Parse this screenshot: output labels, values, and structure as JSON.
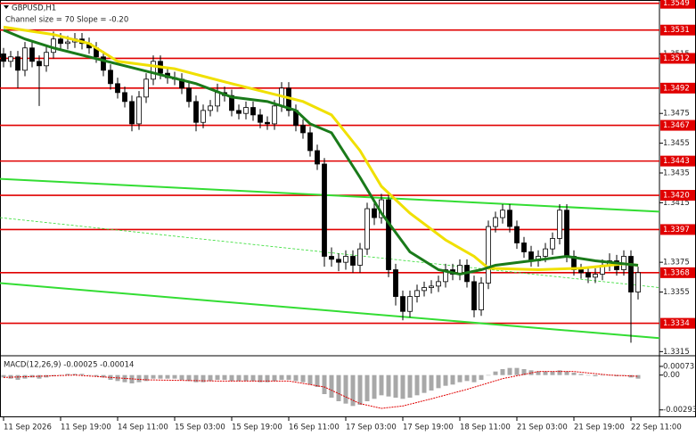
{
  "chart_data": [
    {
      "type": "candlestick",
      "title": "GBPUSD,H1",
      "subtitle": "Channel size = 70 Slope = -0.20",
      "open": [
        1.3515,
        1.351,
        1.3513,
        1.3504,
        1.3519,
        1.351,
        1.3507,
        1.3516,
        1.3525,
        1.3522,
        1.3523,
        1.3525,
        1.3522,
        1.3519,
        1.3513,
        1.3504,
        1.3495,
        1.3489,
        1.3483,
        1.3468,
        1.3486,
        1.3498,
        1.351,
        1.3502,
        1.3499,
        1.3498,
        1.3492,
        1.3483,
        1.3469,
        1.3477,
        1.348,
        1.3489,
        1.3487,
        1.3477,
        1.3475,
        1.3479,
        1.3474,
        1.3469,
        1.3468,
        1.348,
        1.3492,
        1.3477,
        1.3467,
        1.3462,
        1.345,
        1.3441,
        1.3379,
        1.3377,
        1.3375,
        1.3379,
        1.3373,
        1.3384,
        1.3411,
        1.3405,
        1.3417,
        1.337,
        1.3352,
        1.3342,
        1.3352,
        1.3356,
        1.3358,
        1.3359,
        1.3362,
        1.337,
        1.3367,
        1.3373,
        1.3362,
        1.3343,
        1.3361,
        1.3399,
        1.3405,
        1.341,
        1.3399,
        1.3388,
        1.3382,
        1.3376,
        1.3379,
        1.3384,
        1.3391,
        1.341,
        1.3379,
        1.337,
        1.3368,
        1.3365,
        1.3367,
        1.3373,
        1.3376,
        1.337,
        1.3379,
        1.3355
      ],
      "high": [
        1.3519,
        1.3517,
        1.3517,
        1.3523,
        1.3523,
        1.3514,
        1.352,
        1.353,
        1.3529,
        1.3527,
        1.3529,
        1.3529,
        1.3526,
        1.3523,
        1.3517,
        1.3508,
        1.3499,
        1.3493,
        1.3487,
        1.349,
        1.3502,
        1.3514,
        1.3514,
        1.3506,
        1.3503,
        1.3502,
        1.3496,
        1.3487,
        1.3481,
        1.3484,
        1.3495,
        1.3493,
        1.3491,
        1.3481,
        1.3483,
        1.3483,
        1.3478,
        1.3473,
        1.3484,
        1.3496,
        1.3496,
        1.3481,
        1.3471,
        1.3466,
        1.3454,
        1.3445,
        1.3385,
        1.3381,
        1.3383,
        1.3383,
        1.3388,
        1.3415,
        1.3415,
        1.3421,
        1.3421,
        1.3374,
        1.3356,
        1.3356,
        1.336,
        1.3362,
        1.3363,
        1.3366,
        1.3374,
        1.3374,
        1.3377,
        1.3377,
        1.3366,
        1.3365,
        1.3403,
        1.3409,
        1.3414,
        1.3414,
        1.3403,
        1.3392,
        1.3386,
        1.3383,
        1.3388,
        1.3395,
        1.3414,
        1.3414,
        1.3383,
        1.3374,
        1.3372,
        1.3371,
        1.3377,
        1.3381,
        1.338,
        1.3383,
        1.3383,
        1.3372
      ],
      "low": [
        1.3506,
        1.3506,
        1.3492,
        1.35,
        1.3506,
        1.348,
        1.3503,
        1.3512,
        1.3518,
        1.3518,
        1.3519,
        1.3518,
        1.3515,
        1.3509,
        1.35,
        1.3491,
        1.3485,
        1.3479,
        1.3463,
        1.3464,
        1.3482,
        1.3494,
        1.3498,
        1.3495,
        1.3494,
        1.3488,
        1.3479,
        1.3463,
        1.3465,
        1.3473,
        1.3476,
        1.3483,
        1.3473,
        1.3471,
        1.3471,
        1.347,
        1.3465,
        1.3464,
        1.3464,
        1.3476,
        1.3473,
        1.3463,
        1.3458,
        1.3446,
        1.3437,
        1.3372,
        1.3372,
        1.3369,
        1.337,
        1.3368,
        1.3368,
        1.338,
        1.34,
        1.3401,
        1.3365,
        1.3346,
        1.3336,
        1.3338,
        1.3348,
        1.3352,
        1.3354,
        1.3355,
        1.3358,
        1.3363,
        1.3363,
        1.3358,
        1.3338,
        1.3339,
        1.3357,
        1.3395,
        1.3401,
        1.3395,
        1.3384,
        1.3378,
        1.3372,
        1.3372,
        1.3375,
        1.338,
        1.3387,
        1.3375,
        1.3366,
        1.3364,
        1.3361,
        1.3361,
        1.3363,
        1.3369,
        1.3366,
        1.3366,
        1.3321,
        1.335
      ],
      "close": [
        1.351,
        1.3513,
        1.3504,
        1.3519,
        1.351,
        1.3507,
        1.3516,
        1.3525,
        1.3522,
        1.3523,
        1.3525,
        1.3522,
        1.3519,
        1.3513,
        1.3504,
        1.3495,
        1.3489,
        1.3483,
        1.3468,
        1.3486,
        1.3498,
        1.351,
        1.3502,
        1.3499,
        1.3498,
        1.3492,
        1.3483,
        1.3469,
        1.3477,
        1.348,
        1.3489,
        1.3487,
        1.3477,
        1.3475,
        1.3479,
        1.3474,
        1.3469,
        1.3468,
        1.348,
        1.3492,
        1.3477,
        1.3467,
        1.3462,
        1.345,
        1.3441,
        1.3379,
        1.3377,
        1.3375,
        1.3379,
        1.3373,
        1.3384,
        1.3411,
        1.3405,
        1.3417,
        1.337,
        1.3352,
        1.3342,
        1.3352,
        1.3356,
        1.3358,
        1.3359,
        1.3362,
        1.337,
        1.3367,
        1.3373,
        1.3362,
        1.3343,
        1.3361,
        1.3399,
        1.3405,
        1.341,
        1.3399,
        1.3388,
        1.3382,
        1.3376,
        1.3379,
        1.3384,
        1.3391,
        1.341,
        1.3379,
        1.337,
        1.3368,
        1.3365,
        1.3367,
        1.3373,
        1.3376,
        1.337,
        1.3379,
        1.3355,
        1.3368
      ],
      "xlim": [
        -0.5,
        92
      ],
      "xticks": [
        {
          "value": 0,
          "label": "11 Sep 2026"
        },
        {
          "value": 8,
          "label": "11 Sep 19:00"
        },
        {
          "value": 16,
          "label": "14 Sep 11:00"
        },
        {
          "value": 24,
          "label": "15 Sep 03:00"
        },
        {
          "value": 32,
          "label": "15 Sep 19:00"
        },
        {
          "value": 40,
          "label": "16 Sep 11:00"
        },
        {
          "value": 48,
          "label": "17 Sep 03:00"
        },
        {
          "value": 56,
          "label": "17 Sep 19:00"
        },
        {
          "value": 64,
          "label": "18 Sep 11:00"
        },
        {
          "value": 72,
          "label": "21 Sep 03:00"
        },
        {
          "value": 80,
          "label": "21 Sep 19:00"
        },
        {
          "value": 88,
          "label": "22 Sep 11:00"
        }
      ],
      "ylim": [
        1.3314,
        1.355
      ],
      "yticks": [
        1.3515,
        1.3475,
        1.3455,
        1.3435,
        1.3415,
        1.3375,
        1.3355,
        1.3315
      ],
      "levels": [
        1.3549,
        1.3531,
        1.3512,
        1.3492,
        1.3467,
        1.3443,
        {
          "value": 1.342,
          "label": "1.3420"
        },
        1.3397,
        1.3368,
        1.3334
      ],
      "level_color": "#e00000",
      "series": [
        {
          "color": "#f0e000",
          "x": [
            0,
            7,
            12,
            16,
            24,
            32,
            37,
            42,
            46,
            50,
            53,
            57,
            62,
            66,
            68,
            75,
            81,
            87,
            89
          ],
          "values": [
            1.3533,
            1.3528,
            1.3522,
            1.351,
            1.3505,
            1.3495,
            1.3489,
            1.3483,
            1.3474,
            1.345,
            1.3426,
            1.3408,
            1.339,
            1.3379,
            1.3371,
            1.337,
            1.3371,
            1.3374,
            1.3373
          ]
        },
        {
          "color": "#1a7a1a",
          "x": [
            0,
            3,
            7,
            12,
            17,
            22,
            27,
            32,
            37,
            41,
            43,
            46,
            50,
            53,
            57,
            61,
            64,
            67,
            69,
            74,
            79,
            83,
            87,
            89
          ],
          "values": [
            1.3531,
            1.3525,
            1.3519,
            1.3513,
            1.3507,
            1.3501,
            1.3495,
            1.3486,
            1.3483,
            1.3477,
            1.3468,
            1.3462,
            1.3432,
            1.3408,
            1.3382,
            1.337,
            1.3367,
            1.337,
            1.3373,
            1.3376,
            1.3379,
            1.3376,
            1.3374,
            1.3373
          ]
        }
      ],
      "channel": [
        {
          "color": "#33dd33",
          "x": [
            -0.5,
            92
          ],
          "values": [
            1.3431,
            1.3409
          ]
        },
        {
          "color": "#33dd33",
          "x": [
            -0.5,
            92
          ],
          "values": [
            1.3361,
            1.3324
          ]
        },
        {
          "color": "#33dd33",
          "dashed": true,
          "x": [
            -0.5,
            92
          ],
          "values": [
            1.3405,
            1.3358
          ]
        }
      ]
    },
    {
      "type": "macd",
      "title": "MACD(12,26,9) -0.00025 -0.00014",
      "values": [
        -0.0002,
        -0.0003,
        -0.0004,
        -0.0003,
        -0.0002,
        -0.0003,
        -0.0002,
        -0.0001,
        0.0,
        0.0001,
        0.0001,
        0.0001,
        0.0,
        -0.0001,
        -0.0002,
        -0.0004,
        -0.0005,
        -0.0006,
        -0.0007,
        -0.0006,
        -0.0005,
        -0.0003,
        -0.0003,
        -0.0003,
        -0.0003,
        -0.0004,
        -0.0005,
        -0.0006,
        -0.0006,
        -0.0005,
        -0.0004,
        -0.0004,
        -0.0005,
        -0.0005,
        -0.0005,
        -0.0005,
        -0.0006,
        -0.0006,
        -0.0005,
        -0.0004,
        -0.0004,
        -0.0005,
        -0.0006,
        -0.0008,
        -0.001,
        -0.0016,
        -0.0019,
        -0.0022,
        -0.0024,
        -0.0026,
        -0.0025,
        -0.0022,
        -0.002,
        -0.0017,
        -0.0018,
        -0.0019,
        -0.002,
        -0.0019,
        -0.0017,
        -0.0015,
        -0.0013,
        -0.0011,
        -0.0009,
        -0.0008,
        -0.0006,
        -0.0005,
        -0.0006,
        -0.0004,
        0.0,
        0.0003,
        0.0005,
        0.0006,
        0.0006,
        0.0005,
        0.0004,
        0.0003,
        0.0003,
        0.0003,
        0.0004,
        0.0003,
        0.0002,
        0.0001,
        0.0,
        -0.0001,
        0.0,
        0.0,
        -0.0001,
        0.0,
        -0.0002,
        -0.0003
      ],
      "color": "#a8a8a8",
      "signal": {
        "color": "#e00000",
        "x": [
          0,
          10,
          20,
          30,
          40,
          45,
          50,
          53,
          56,
          60,
          65,
          70,
          75,
          80,
          85,
          89
        ],
        "values": [
          -0.0002,
          0.0,
          -0.0004,
          -0.0005,
          -0.0005,
          -0.001,
          -0.0024,
          -0.0028,
          -0.0026,
          -0.002,
          -0.0012,
          -0.0003,
          0.0003,
          0.0003,
          0.0,
          -0.0001
        ]
      },
      "xlim": [
        -0.5,
        92
      ],
      "ylim": [
        -0.0034,
        0.0014
      ],
      "yticks": [
        0.00073,
        {
          "value": 0,
          "label": "0.00"
        },
        -0.00293
      ]
    }
  ]
}
